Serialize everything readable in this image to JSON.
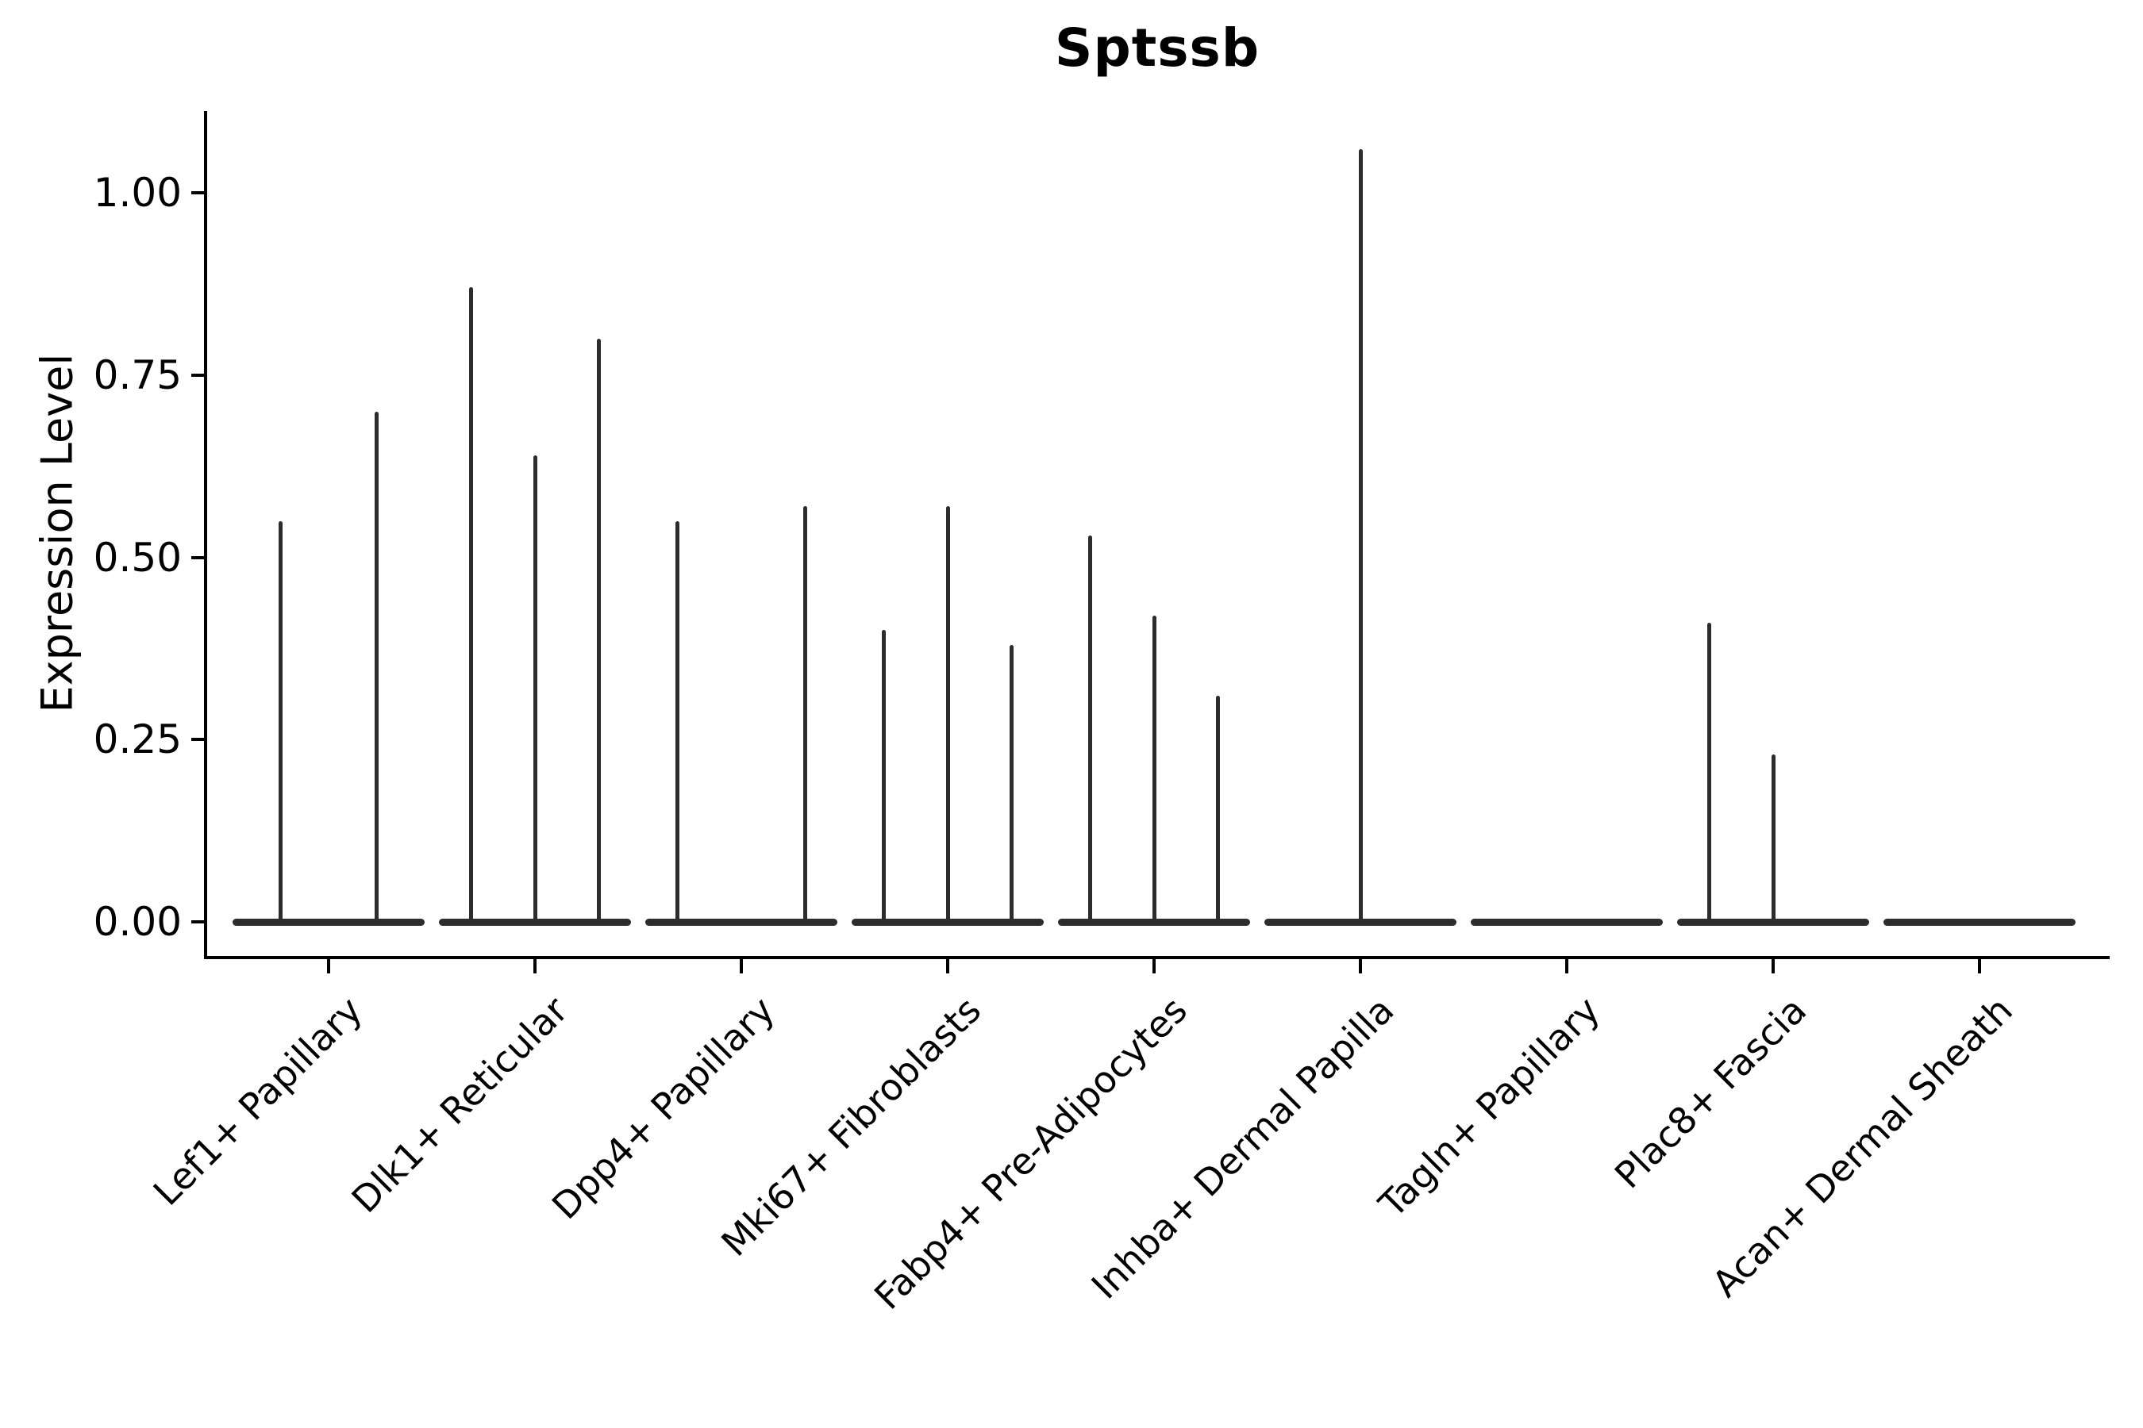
{
  "title": "Sptssb",
  "y_axis": {
    "label": "Expression Level",
    "ticks": [
      {
        "label": "0.00",
        "value": 0.0
      },
      {
        "label": "0.25",
        "value": 0.25
      },
      {
        "label": "0.50",
        "value": 0.5
      },
      {
        "label": "0.75",
        "value": 0.75
      },
      {
        "label": "1.00",
        "value": 1.0
      }
    ]
  },
  "chart_data": {
    "type": "violin",
    "title": "Sptssb",
    "xlabel": "",
    "ylabel": "Expression Level",
    "ylim": [
      -0.05,
      1.11
    ],
    "grid": false,
    "legend": "none",
    "categories": [
      "Lef1+ Papillary",
      "Dlk1+ Reticular",
      "Dpp4+ Papillary",
      "Mki67+ Fibroblasts",
      "Fabp4+ Pre-Adipocytes",
      "Inhba+ Dermal Papilla",
      "Tagln+ Papillary",
      "Plac8+ Fascia",
      "Acan+ Dermal Sheath"
    ],
    "description": "Collapsed violins: dense mass at 0 expression with thin spikes reaching each violin's maximum expression value",
    "groups": [
      {
        "label": "Lef1+ Papillary",
        "violins": [
          {
            "pos": -0.25,
            "max": 0.55
          },
          {
            "pos": 0.25,
            "max": 0.7
          }
        ]
      },
      {
        "label": "Dlk1+ Reticular",
        "violins": [
          {
            "pos": -0.333,
            "max": 0.87
          },
          {
            "pos": 0.0,
            "max": 0.64
          },
          {
            "pos": 0.333,
            "max": 0.8
          }
        ]
      },
      {
        "label": "Dpp4+ Papillary",
        "violins": [
          {
            "pos": -0.333,
            "max": 0.55
          },
          {
            "pos": 0.0,
            "max": 0.0
          },
          {
            "pos": 0.333,
            "max": 0.57
          }
        ]
      },
      {
        "label": "Mki67+ Fibroblasts",
        "violins": [
          {
            "pos": -0.333,
            "max": 0.4
          },
          {
            "pos": 0.0,
            "max": 0.57
          },
          {
            "pos": 0.333,
            "max": 0.38
          }
        ]
      },
      {
        "label": "Fabp4+ Pre-Adipocytes",
        "violins": [
          {
            "pos": -0.333,
            "max": 0.53
          },
          {
            "pos": 0.0,
            "max": 0.42
          },
          {
            "pos": 0.333,
            "max": 0.31
          }
        ]
      },
      {
        "label": "Inhba+ Dermal Papilla",
        "violins": [
          {
            "pos": 0.0,
            "max": 1.06
          }
        ]
      },
      {
        "label": "Tagln+ Papillary",
        "violins": [
          {
            "pos": 0.0,
            "max": 0.0
          }
        ]
      },
      {
        "label": "Plac8+ Fascia",
        "violins": [
          {
            "pos": -0.333,
            "max": 0.41
          },
          {
            "pos": 0.0,
            "max": 0.23
          },
          {
            "pos": 0.333,
            "max": 0.0
          }
        ]
      },
      {
        "label": "Acan+ Dermal Sheath",
        "violins": [
          {
            "pos": 0.0,
            "max": 0.0
          }
        ]
      }
    ],
    "colors": {
      "violin": "#2d2d2d",
      "axis": "#000000",
      "text": "#000000",
      "background": "#ffffff"
    }
  }
}
